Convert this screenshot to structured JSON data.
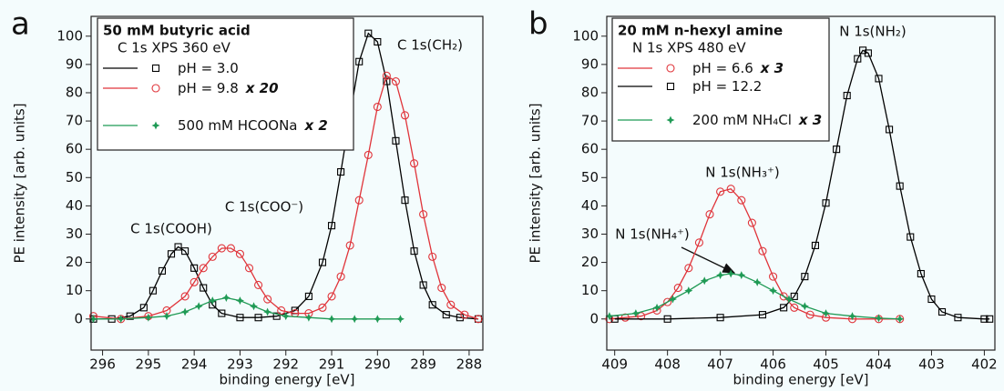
{
  "chart_data": [
    {
      "type": "line",
      "panel_label": "a",
      "xlabel": "binding energy [eV]",
      "ylabel": "PE intensity [arb. units]",
      "legend_title": "50 mM butyric acid",
      "legend_subtitle": "C 1s XPS 360 eV",
      "legend_loc": "upper left",
      "xlim": [
        296.25,
        287.7
      ],
      "ylim": [
        -11,
        107
      ],
      "xticks": [
        296,
        295,
        294,
        293,
        292,
        291,
        290,
        289,
        288
      ],
      "yticks": [
        0,
        10,
        20,
        30,
        40,
        50,
        60,
        70,
        80,
        90,
        100
      ],
      "annotations": [
        "C 1s(COOH)",
        "C 1s(COO⁻)",
        "C 1s(CH₂)"
      ],
      "series": [
        {
          "name": "pH = 3.0",
          "color": "#000000",
          "marker": "square",
          "x": [
            296.2,
            295.8,
            295.4,
            295.1,
            294.9,
            294.7,
            294.5,
            294.35,
            294.2,
            294.0,
            293.8,
            293.6,
            293.4,
            293.0,
            292.6,
            292.2,
            291.8,
            291.5,
            291.2,
            291.0,
            290.8,
            290.6,
            290.4,
            290.2,
            290.0,
            289.8,
            289.6,
            289.4,
            289.2,
            289.0,
            288.8,
            288.5,
            288.2,
            287.8
          ],
          "values": [
            0,
            0,
            1,
            4,
            10,
            17,
            23,
            25.5,
            24,
            18,
            11,
            5,
            2,
            0.5,
            0.5,
            1,
            3,
            8,
            20,
            33,
            52,
            72,
            91,
            101,
            98,
            84,
            63,
            42,
            24,
            12,
            5,
            1.5,
            0.5,
            0
          ]
        },
        {
          "name": "pH = 9.8",
          "factor": "x 20",
          "color": "#e0343a",
          "marker": "circle",
          "x": [
            296.2,
            295.6,
            295.0,
            294.6,
            294.2,
            294.0,
            293.8,
            293.6,
            293.4,
            293.2,
            293.0,
            292.8,
            292.6,
            292.4,
            292.1,
            291.8,
            291.5,
            291.2,
            291.0,
            290.8,
            290.6,
            290.4,
            290.2,
            290.0,
            289.8,
            289.6,
            289.4,
            289.2,
            289.0,
            288.8,
            288.6,
            288.4,
            288.1,
            287.8
          ],
          "values": [
            1,
            0,
            1,
            3,
            8,
            13,
            18,
            22,
            25,
            25,
            23,
            18,
            12,
            7,
            3,
            2,
            2,
            4,
            8,
            15,
            26,
            42,
            58,
            75,
            86,
            84,
            72,
            55,
            37,
            22,
            11,
            5,
            1.5,
            0
          ]
        },
        {
          "name": "500 mM HCOONa",
          "factor": "x 2",
          "color": "#1f9a55",
          "marker": "star",
          "x": [
            296.2,
            295.6,
            295.0,
            294.6,
            294.2,
            293.9,
            293.6,
            293.3,
            293.0,
            292.7,
            292.4,
            292.0,
            291.5,
            291.0,
            290.5,
            290.0,
            289.5
          ],
          "values": [
            0,
            0,
            0.5,
            1,
            2.5,
            4.5,
            6.5,
            7.5,
            6.5,
            4.5,
            2.5,
            1,
            0.5,
            0,
            0,
            0,
            0
          ]
        }
      ]
    },
    {
      "type": "line",
      "panel_label": "b",
      "xlabel": "binding energy [eV]",
      "ylabel": "PE intensity [arb. units]",
      "legend_title": "20 mM n-hexyl amine",
      "legend_subtitle": "N 1s XPS 480 eV",
      "legend_loc": "upper left",
      "xlim": [
        409.15,
        401.8
      ],
      "ylim": [
        -11,
        107
      ],
      "xticks": [
        409,
        408,
        407,
        406,
        405,
        404,
        403,
        402
      ],
      "yticks": [
        0,
        10,
        20,
        30,
        40,
        50,
        60,
        70,
        80,
        90,
        100
      ],
      "annotations": [
        "N 1s(NH₂)",
        "N 1s(NH₃⁺)",
        "N 1s(NH₄⁺)"
      ],
      "series": [
        {
          "name": "pH = 6.6",
          "factor": "x 3",
          "color": "#e0343a",
          "marker": "circle",
          "x": [
            409.1,
            408.8,
            408.5,
            408.2,
            408.0,
            407.8,
            407.6,
            407.4,
            407.2,
            407.0,
            406.8,
            406.6,
            406.4,
            406.2,
            406.0,
            405.8,
            405.6,
            405.3,
            405.0,
            404.5,
            404.0,
            403.6
          ],
          "values": [
            0,
            0.5,
            1,
            3,
            6,
            11,
            18,
            27,
            37,
            45,
            46,
            42,
            34,
            24,
            15,
            8,
            4,
            1.5,
            0.5,
            0,
            0,
            0
          ]
        },
        {
          "name": "pH = 12.2",
          "color": "#000000",
          "marker": "square",
          "x": [
            409.0,
            408.0,
            407.0,
            406.2,
            405.8,
            405.6,
            405.4,
            405.2,
            405.0,
            404.8,
            404.6,
            404.4,
            404.3,
            404.2,
            404.0,
            403.8,
            403.6,
            403.4,
            403.2,
            403.0,
            402.8,
            402.5,
            402.0,
            401.9
          ],
          "values": [
            0,
            0,
            0.5,
            1.5,
            4,
            8,
            15,
            26,
            41,
            60,
            79,
            92,
            95,
            94,
            85,
            67,
            47,
            29,
            16,
            7,
            2.5,
            0.5,
            0,
            0
          ]
        },
        {
          "name": "200 mM NH₄Cl",
          "factor": "x 3",
          "color": "#1f9a55",
          "marker": "star",
          "x": [
            409.1,
            408.6,
            408.2,
            407.9,
            407.6,
            407.3,
            407.0,
            406.8,
            406.6,
            406.3,
            406.0,
            405.7,
            405.4,
            405.0,
            404.5,
            404.0,
            403.6
          ],
          "values": [
            1,
            2,
            4,
            7,
            10,
            13.5,
            15.5,
            16,
            15.5,
            13,
            10,
            7,
            4.5,
            2,
            1,
            0.3,
            0
          ]
        }
      ]
    }
  ]
}
